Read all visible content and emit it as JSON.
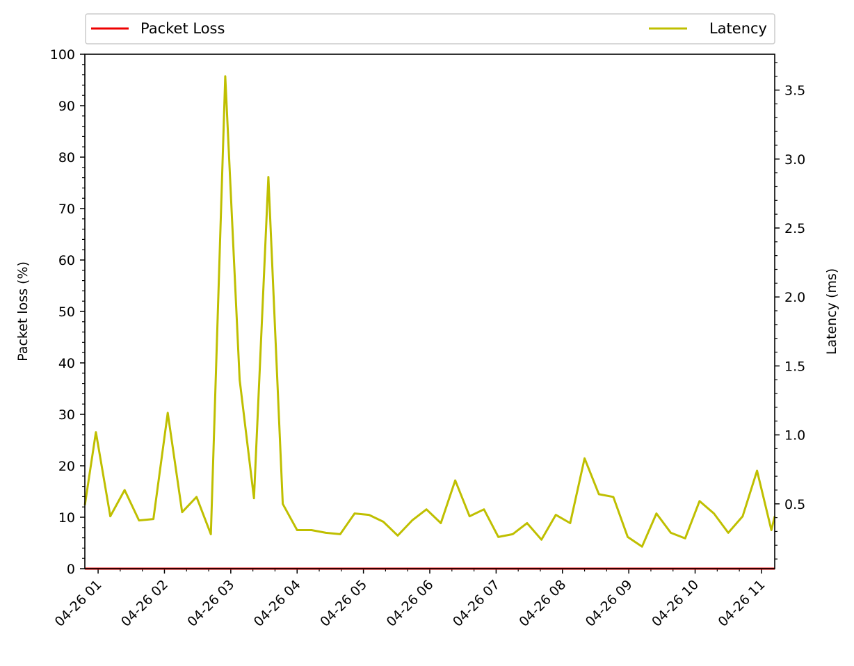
{
  "chart_data": {
    "type": "line",
    "legend": {
      "placement": "top-outside",
      "entries": [
        {
          "name": "Packet Loss",
          "color": "#ee0000"
        },
        {
          "name": "Latency",
          "color": "#bfbf00"
        }
      ]
    },
    "y_left": {
      "label": "Packet loss (%)",
      "range": [
        0,
        100
      ],
      "ticks": [
        "0",
        "10",
        "20",
        "30",
        "40",
        "50",
        "60",
        "70",
        "80",
        "90",
        "100"
      ]
    },
    "y_right": {
      "label": "Latency (ms)",
      "range": [
        0.03,
        3.76
      ],
      "ticks": [
        "0.5",
        "1.0",
        "1.5",
        "2.0",
        "2.5",
        "3.0",
        "3.5"
      ]
    },
    "x_axis": {
      "range": [
        "04-26 00:48",
        "04-26 11:12"
      ],
      "ticks": [
        "04-26 01",
        "04-26 02",
        "04-26 03",
        "04-26 04",
        "04-26 05",
        "04-26 06",
        "04-26 07",
        "04-26 08",
        "04-26 09",
        "04-26 10",
        "04-26 11"
      ]
    },
    "grid": false,
    "series": [
      {
        "name": "Packet Loss",
        "axis": "left",
        "color": "#ee0000",
        "points": [
          [
            "04-26 00:48",
            0
          ],
          [
            "04-26 11:12",
            0
          ]
        ]
      },
      {
        "name": "Latency",
        "axis": "right",
        "color": "#bfbf00",
        "points": [
          [
            "04-26 00:48",
            0.49
          ],
          [
            "04-26 00:58",
            1.02
          ],
          [
            "04-26 01:11",
            0.41
          ],
          [
            "04-26 01:24",
            0.6
          ],
          [
            "04-26 01:37",
            0.38
          ],
          [
            "04-26 01:50",
            0.39
          ],
          [
            "04-26 02:03",
            1.16
          ],
          [
            "04-26 02:16",
            0.44
          ],
          [
            "04-26 02:29",
            0.55
          ],
          [
            "04-26 02:42",
            0.28
          ],
          [
            "04-26 02:55",
            3.6
          ],
          [
            "04-26 03:08",
            1.4
          ],
          [
            "04-26 03:21",
            0.54
          ],
          [
            "04-26 03:34",
            2.87
          ],
          [
            "04-26 03:47",
            0.5
          ],
          [
            "04-26 04:00",
            0.31
          ],
          [
            "04-26 04:13",
            0.31
          ],
          [
            "04-26 04:26",
            0.29
          ],
          [
            "04-26 04:39",
            0.28
          ],
          [
            "04-26 04:52",
            0.43
          ],
          [
            "04-26 05:05",
            0.42
          ],
          [
            "04-26 05:18",
            0.37
          ],
          [
            "04-26 05:31",
            0.27
          ],
          [
            "04-26 05:44",
            0.38
          ],
          [
            "04-26 05:57",
            0.46
          ],
          [
            "04-26 06:10",
            0.36
          ],
          [
            "04-26 06:23",
            0.67
          ],
          [
            "04-26 06:36",
            0.41
          ],
          [
            "04-26 06:49",
            0.46
          ],
          [
            "04-26 07:02",
            0.26
          ],
          [
            "04-26 07:15",
            0.28
          ],
          [
            "04-26 07:28",
            0.36
          ],
          [
            "04-26 07:41",
            0.24
          ],
          [
            "04-26 07:54",
            0.42
          ],
          [
            "04-26 08:07",
            0.36
          ],
          [
            "04-26 08:20",
            0.83
          ],
          [
            "04-26 08:33",
            0.57
          ],
          [
            "04-26 08:46",
            0.55
          ],
          [
            "04-26 08:59",
            0.26
          ],
          [
            "04-26 09:12",
            0.19
          ],
          [
            "04-26 09:25",
            0.43
          ],
          [
            "04-26 09:38",
            0.29
          ],
          [
            "04-26 09:51",
            0.25
          ],
          [
            "04-26 10:04",
            0.52
          ],
          [
            "04-26 10:17",
            0.43
          ],
          [
            "04-26 10:30",
            0.29
          ],
          [
            "04-26 10:43",
            0.41
          ],
          [
            "04-26 10:56",
            0.74
          ],
          [
            "04-26 11:09",
            0.31
          ],
          [
            "04-26 11:12",
            0.41
          ]
        ]
      }
    ]
  }
}
